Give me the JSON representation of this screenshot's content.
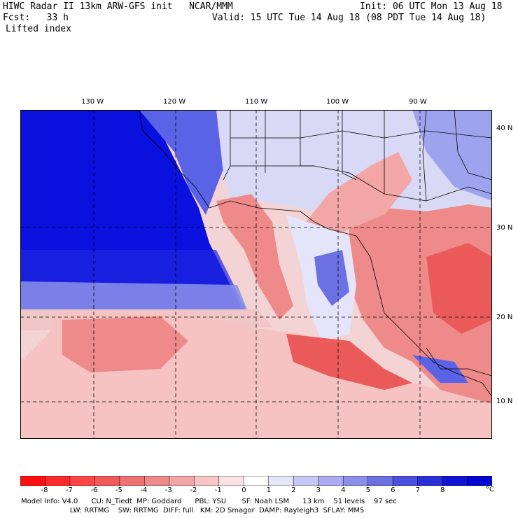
{
  "header": {
    "line1_left": "HIWC Radar II 13km ARW-GFS init   NCAR/MMM",
    "line1_right": "Init: 06 UTC Mon 13 Aug 18",
    "line2_left": "Fcst:   33 h",
    "line2_right": "Valid: 15 UTC Tue 14 Aug 18 (08 PDT Tue 14 Aug 18)",
    "field": "Lifted index"
  },
  "axes": {
    "lon_labels": [
      "130 W",
      "120 W",
      "110 W",
      "100 W",
      "90 W"
    ],
    "lat_labels": [
      "40 N",
      "30 N",
      "20 N",
      "10 N"
    ]
  },
  "colorbar": {
    "ticks": [
      "-8",
      "-7",
      "-6",
      "-5",
      "-4",
      "-3",
      "-2",
      "-1",
      "0",
      "1",
      "2",
      "3",
      "4",
      "5",
      "6",
      "7",
      "8"
    ],
    "unit": "°C",
    "colors": [
      "#ff1010",
      "#ff2a2a",
      "#ff4545",
      "#f25a5a",
      "#ee7272",
      "#ef8a8a",
      "#f2a6a6",
      "#f7c6c6",
      "#fbe3e3",
      "#ffffff",
      "#e6e6fb",
      "#c6c8f5",
      "#a9acf0",
      "#8a8fe9",
      "#6b70e2",
      "#4a4fdd",
      "#2a30d8",
      "#1015d4",
      "#0005d0"
    ]
  },
  "footer": {
    "line1": "Model Info: V4.0      CU: N_Tiedt  MP: Goddard      PBL: YSU       SF: Noah LSM      13 km    51 levels    97 sec",
    "line2": "                      LW: RRTMG    SW: RRTMG  DIFF: full   KM: 2D Smagor  DAMP: Rayleigh3  SFLAY: MM5"
  },
  "map_colors": {
    "ocean_blue": "#0a10dd",
    "mid_blue": "#5a62e6",
    "light_blue": "#b8bcf2",
    "white": "#f4f4fb",
    "light_red": "#f6c2c2",
    "mid_red": "#ef8a8a",
    "strong_red": "#ea5a5a"
  }
}
